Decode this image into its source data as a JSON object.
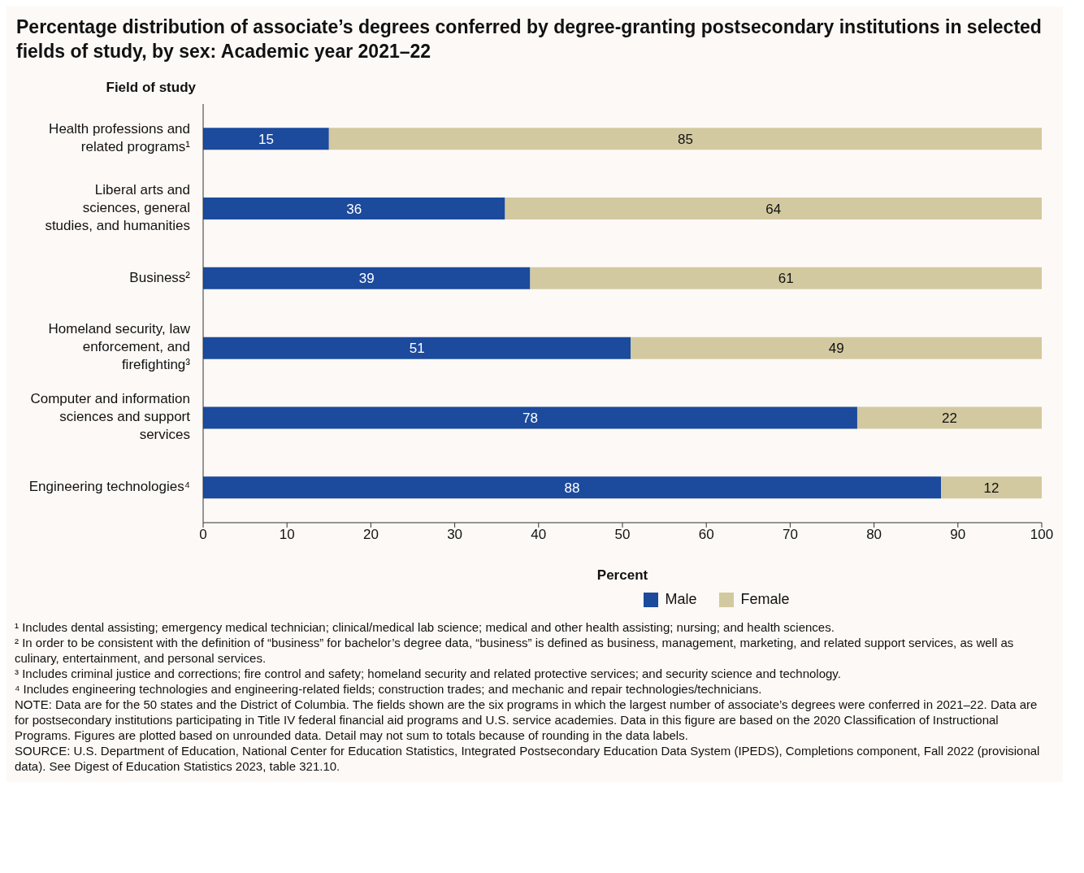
{
  "chart_data": {
    "type": "bar",
    "orientation": "horizontal",
    "stacked": true,
    "title": "Percentage distribution of associate’s degrees conferred by degree-granting postsecondary institutions in selected fields of study, by sex: Academic year 2021–22",
    "ylabel": "Field of study",
    "xlabel": "Percent",
    "categories": [
      "Health professions and related programs¹",
      "Liberal arts and sciences, general studies, and humanities",
      "Business²",
      "Homeland security, law enforcement, and firefighting³",
      "Computer and information sciences and support services",
      "Engineering technologies⁴"
    ],
    "series": [
      {
        "name": "Male",
        "color": "#1c4a9c",
        "values": [
          15,
          36,
          39,
          51,
          78,
          88
        ]
      },
      {
        "name": "Female",
        "color": "#d3c9a0",
        "values": [
          85,
          64,
          61,
          49,
          22,
          12
        ]
      }
    ],
    "xlim": [
      0,
      100
    ],
    "xticks": [
      0,
      10,
      20,
      30,
      40,
      50,
      60,
      70,
      80,
      90,
      100
    ],
    "grid": false,
    "legend": "bottom",
    "data_labels": true,
    "annotations": [
      "¹ Includes dental assisting; emergency medical technician; clinical/medical lab science; medical and other health assisting; nursing; and health sciences.",
      "² In order to be consistent with the definition of “business” for bachelor’s degree data, “business” is defined as business, management, marketing, and related support services, as well as culinary, entertainment, and personal services.",
      "³ Includes criminal justice and corrections; fire control and safety; homeland security and related protective services; and security science and technology.",
      "⁴ Includes engineering technologies and engineering-related fields; construction trades; and mechanic and repair technologies/technicians.",
      "NOTE: Data are for the 50 states and the District of Columbia. The fields shown are the six programs in which the largest number of associate’s degrees were conferred in 2021–22. Data are for postsecondary institutions participating in Title IV federal financial aid programs and U.S. service academies. Data in this figure are based on the 2020 Classification of Instructional Programs. Figures are plotted based on unrounded data. Detail may not sum to totals because of rounding in the data labels.",
      "SOURCE: U.S. Department of Education, National Center for Education Statistics, Integrated Postsecondary Education Data System (IPEDS), Completions component, Fall 2022 (provisional data). See Digest of Education Statistics 2023, table 321.10."
    ]
  }
}
